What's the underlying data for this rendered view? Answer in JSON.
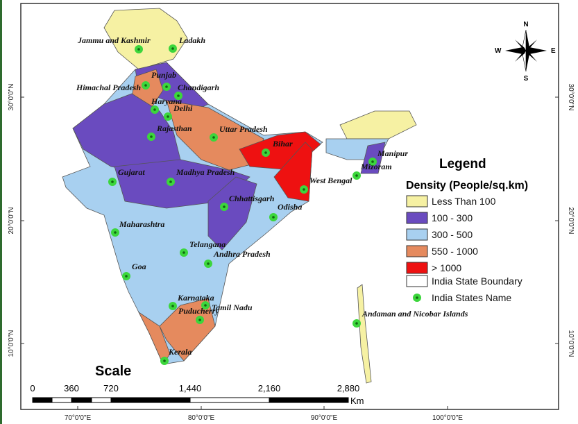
{
  "legend": {
    "title": "Legend",
    "subtitle": "Density (People/sq.km)",
    "items": [
      {
        "label": "Less Than 100",
        "color": "#f6f1a3"
      },
      {
        "label": "100 - 300",
        "color": "#6a4bbf"
      },
      {
        "label": "300 - 500",
        "color": "#a8d0f0"
      },
      {
        "label": "550 - 1000",
        "color": "#e58a5e"
      },
      {
        "label": "> 1000",
        "color": "#ee1111"
      }
    ],
    "boundary": "India State Boundary",
    "points": "India States Name"
  },
  "states": [
    "Jammu and Kashmir",
    "Ladakh",
    "Punjab",
    "Himachal Pradesh",
    "Chandigarh",
    "Haryana",
    "Delhi",
    "Rajasthan",
    "Uttar Pradesh",
    "Bihar",
    "Manipur",
    "Gujarat",
    "Madhya Pradesh",
    "Mizoram",
    "West Bengal",
    "Chhattisgarh",
    "Odisha",
    "Maharashtra",
    "Telangana",
    "Andhra Pradesh",
    "Goa",
    "Karnataka",
    "Tamil Nadu",
    "Puducherry",
    "Andaman and Nicobar Islands",
    "Kerala"
  ],
  "latitudes": [
    "30°0'0\"N",
    "20°0'0\"N",
    "10°0'0\"N"
  ],
  "longitudes": [
    "70°0'0\"E",
    "80°0'0\"E",
    "90°0'0\"E",
    "100°0'0\"E"
  ],
  "scale": {
    "title": "Scale",
    "ticks": [
      "0",
      "360",
      "720",
      "1,440",
      "2,160",
      "2,880"
    ],
    "unit": "Km"
  },
  "compass": {
    "n": "N",
    "s": "S",
    "e": "E",
    "w": "W"
  }
}
